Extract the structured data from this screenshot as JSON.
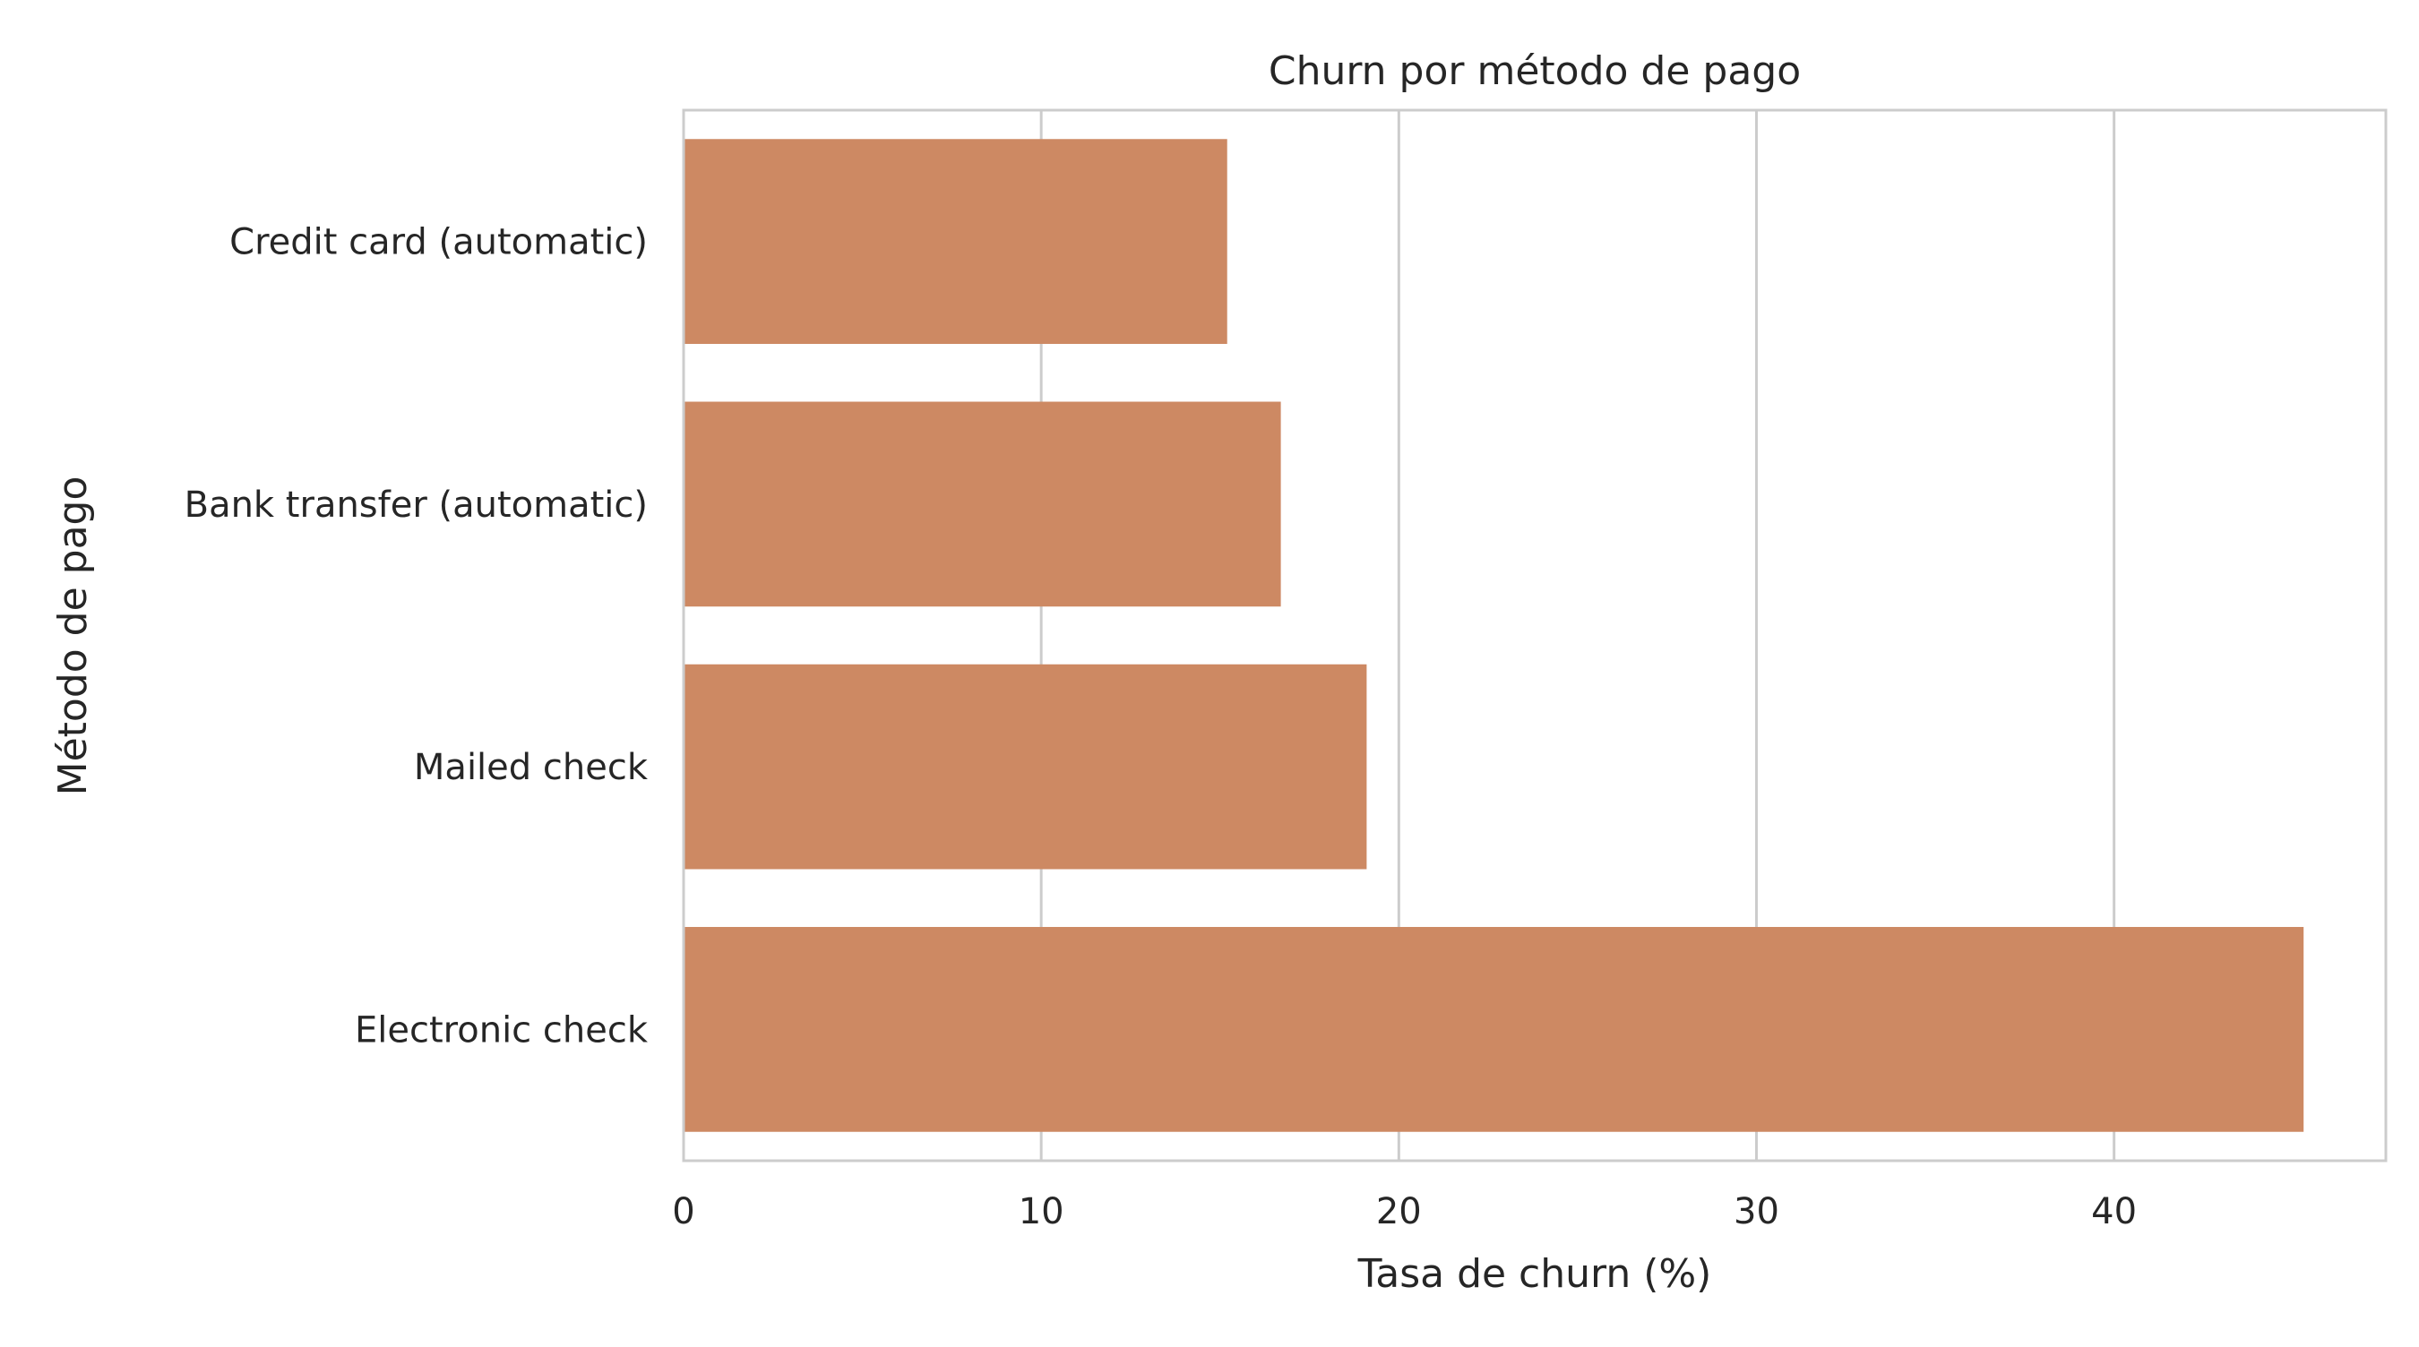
{
  "chart_data": {
    "type": "bar",
    "orientation": "horizontal",
    "title": "Churn por método de pago",
    "xlabel": "Tasa de churn (%)",
    "ylabel": "Método de pago",
    "categories": [
      "Credit card (automatic)",
      "Bank transfer (automatic)",
      "Mailed check",
      "Electronic check"
    ],
    "values": [
      15.2,
      16.7,
      19.1,
      45.3
    ],
    "xlim": [
      0,
      47.6
    ],
    "xticks": [
      0,
      10,
      20,
      30,
      40
    ],
    "grid": "x-major",
    "bar_color": "#cd8963",
    "legend": "none"
  }
}
